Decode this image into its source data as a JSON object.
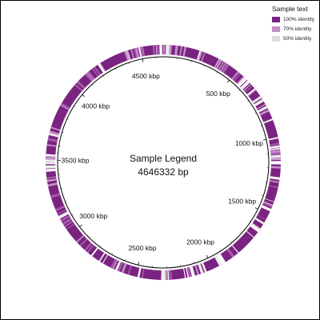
{
  "title": "Sample Legend",
  "genome_length_label": "4646332 bp",
  "genome_length": 4646332,
  "legend": {
    "title": "Sample text",
    "items": [
      {
        "label": "100% identity",
        "color": "#7b2381"
      },
      {
        "label": "70% identity",
        "color": "#c28ec6"
      },
      {
        "label": "50% identity",
        "color": "#dddddd"
      }
    ]
  },
  "ticks": [
    {
      "kbp": 500,
      "label": "500 kbp"
    },
    {
      "kbp": 1000,
      "label": "1000 kbp"
    },
    {
      "kbp": 1500,
      "label": "1500 kbp"
    },
    {
      "kbp": 2000,
      "label": "2000 kbp"
    },
    {
      "kbp": 2500,
      "label": "2500 kbp"
    },
    {
      "kbp": 3000,
      "label": "3000 kbp"
    },
    {
      "kbp": 3500,
      "label": "3500 kbp"
    },
    {
      "kbp": 4000,
      "label": "4000 kbp"
    },
    {
      "kbp": 4500,
      "label": "4500 kbp"
    }
  ],
  "colors": {
    "ring_main": "#7b2381",
    "ring_mid": "#a65aab",
    "ring_light": "#c28ec6",
    "ring_gap": "#eeeeee",
    "backbone": "#000000"
  }
}
